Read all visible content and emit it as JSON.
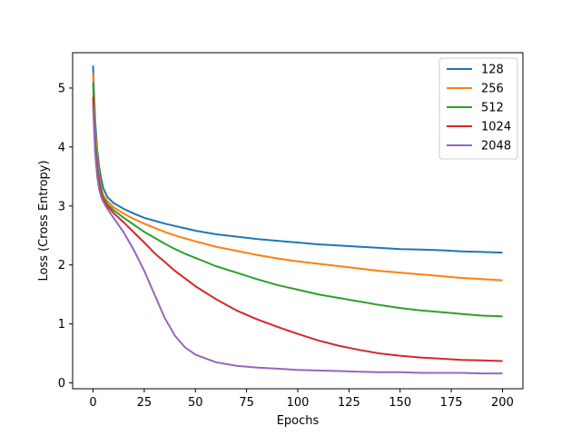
{
  "chart_data": {
    "type": "line",
    "title": "",
    "xlabel": "Epochs",
    "ylabel": "Loss (Cross Entropy)",
    "xlim": [
      -10,
      210
    ],
    "ylim": [
      -0.1,
      5.6
    ],
    "xticks": [
      0,
      25,
      50,
      75,
      100,
      125,
      150,
      175,
      200
    ],
    "yticks": [
      0,
      1,
      2,
      3,
      4,
      5
    ],
    "grid": false,
    "legend_position": "top-right",
    "x": [
      0,
      1,
      2,
      3,
      4,
      5,
      7,
      10,
      15,
      20,
      25,
      30,
      35,
      40,
      45,
      50,
      60,
      70,
      80,
      90,
      100,
      110,
      120,
      130,
      140,
      150,
      160,
      170,
      180,
      190,
      200
    ],
    "series": [
      {
        "name": "128",
        "color": "#1f77b4",
        "values": [
          5.38,
          4.45,
          3.95,
          3.65,
          3.45,
          3.3,
          3.15,
          3.05,
          2.95,
          2.87,
          2.8,
          2.75,
          2.7,
          2.66,
          2.62,
          2.58,
          2.52,
          2.48,
          2.44,
          2.41,
          2.38,
          2.35,
          2.33,
          2.31,
          2.29,
          2.27,
          2.26,
          2.25,
          2.23,
          2.22,
          2.21
        ]
      },
      {
        "name": "256",
        "color": "#ff7f0e",
        "values": [
          5.25,
          4.3,
          3.8,
          3.5,
          3.3,
          3.18,
          3.08,
          2.98,
          2.87,
          2.78,
          2.7,
          2.63,
          2.56,
          2.5,
          2.45,
          2.4,
          2.31,
          2.24,
          2.17,
          2.11,
          2.06,
          2.02,
          1.98,
          1.94,
          1.9,
          1.87,
          1.84,
          1.81,
          1.78,
          1.76,
          1.74
        ]
      },
      {
        "name": "512",
        "color": "#2ca02c",
        "values": [
          5.1,
          4.15,
          3.7,
          3.42,
          3.25,
          3.14,
          3.03,
          2.93,
          2.8,
          2.68,
          2.56,
          2.46,
          2.36,
          2.27,
          2.19,
          2.12,
          1.98,
          1.87,
          1.76,
          1.66,
          1.58,
          1.5,
          1.44,
          1.38,
          1.32,
          1.27,
          1.23,
          1.2,
          1.17,
          1.14,
          1.13
        ]
      },
      {
        "name": "1024",
        "color": "#d62728",
        "values": [
          4.85,
          4.0,
          3.6,
          3.35,
          3.2,
          3.1,
          3.0,
          2.88,
          2.72,
          2.55,
          2.38,
          2.2,
          2.05,
          1.9,
          1.77,
          1.64,
          1.42,
          1.23,
          1.08,
          0.95,
          0.83,
          0.72,
          0.63,
          0.56,
          0.5,
          0.46,
          0.43,
          0.41,
          0.39,
          0.38,
          0.37
        ]
      },
      {
        "name": "2048",
        "color": "#9467bd",
        "values": [
          4.7,
          3.9,
          3.5,
          3.28,
          3.15,
          3.07,
          2.95,
          2.8,
          2.55,
          2.25,
          1.9,
          1.5,
          1.1,
          0.8,
          0.6,
          0.48,
          0.35,
          0.29,
          0.26,
          0.24,
          0.22,
          0.21,
          0.2,
          0.19,
          0.18,
          0.18,
          0.17,
          0.17,
          0.17,
          0.16,
          0.16
        ]
      }
    ]
  }
}
